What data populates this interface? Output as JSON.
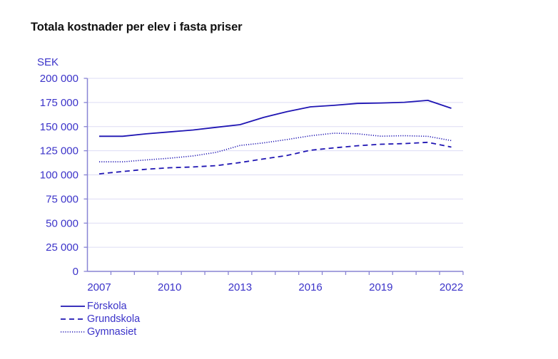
{
  "colors": {
    "text": "#3b33c9",
    "title": "#111111",
    "axis": "#8884d4",
    "grid": "#dddcf4",
    "series": "#1f15b3"
  },
  "chart_data": {
    "type": "line",
    "title": "Totala kostnader per elev i fasta priser",
    "ylabel": "SEK",
    "xlabel": "",
    "ylim": [
      0,
      200000
    ],
    "yticks": [
      0,
      25000,
      50000,
      75000,
      100000,
      125000,
      150000,
      175000,
      200000
    ],
    "ytick_labels": [
      "0",
      "25 000",
      "50 000",
      "75 000",
      "100 000",
      "125 000",
      "150 000",
      "175 000",
      "200 000"
    ],
    "x": [
      2007,
      2008,
      2009,
      2010,
      2011,
      2012,
      2013,
      2014,
      2015,
      2016,
      2017,
      2018,
      2019,
      2020,
      2021,
      2022
    ],
    "xtick_labels": [
      "2007",
      "2010",
      "2013",
      "2016",
      "2019",
      "2022"
    ],
    "grid": "horizontal",
    "legend_position": "bottom-left",
    "series": [
      {
        "name": "Förskola",
        "style": "solid",
        "values": [
          140000,
          140000,
          142500,
          144500,
          146500,
          149300,
          152000,
          159500,
          165500,
          170500,
          172000,
          174000,
          174500,
          175200,
          177200,
          169000
        ]
      },
      {
        "name": "Grundskola",
        "style": "dashed",
        "values": [
          101000,
          103500,
          105800,
          107400,
          108200,
          109600,
          112800,
          116500,
          120100,
          125500,
          128000,
          130200,
          131700,
          132400,
          133700,
          128800
        ]
      },
      {
        "name": "Gymnasiet",
        "style": "dotted",
        "values": [
          113500,
          113500,
          115500,
          117300,
          119600,
          123400,
          130500,
          133100,
          136600,
          140500,
          143200,
          142600,
          140100,
          140600,
          139900,
          135500
        ]
      }
    ]
  }
}
